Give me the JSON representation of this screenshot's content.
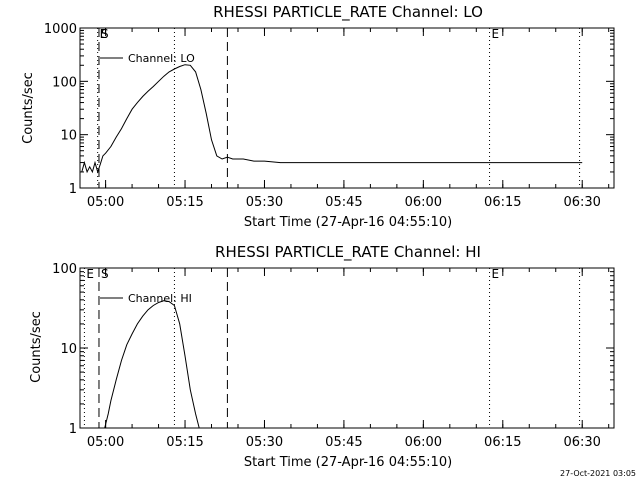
{
  "footer_timestamp": "27-Oct-2021 03:05",
  "chart_data": [
    {
      "type": "line",
      "title": "RHESSI PARTICLE_RATE Channel: LO",
      "xlabel": "Start Time (27-Apr-16 04:55:10)",
      "ylabel": "Counts/sec",
      "yscale": "log",
      "xlim": [
        "04:55:10",
        "06:36:00"
      ],
      "ylim": [
        1,
        1000
      ],
      "x_ticks": [
        "05:00",
        "05:15",
        "05:30",
        "05:45",
        "06:00",
        "06:15",
        "06:30"
      ],
      "y_ticks": [
        "1",
        "10",
        "100",
        "1000"
      ],
      "legend": {
        "position": "top-left",
        "entries": [
          "Channel: LO"
        ]
      },
      "markers": [
        {
          "time": "04:58:30",
          "label": "E",
          "style": "dotted"
        },
        {
          "time": "04:58:45",
          "label": "S",
          "style": "dashed"
        },
        {
          "time": "05:13:00",
          "label": "",
          "style": "dotted"
        },
        {
          "time": "05:23:00",
          "label": "",
          "style": "dashed"
        },
        {
          "time": "06:12:30",
          "label": "E",
          "style": "dotted"
        },
        {
          "time": "06:29:30",
          "label": "",
          "style": "dotted"
        }
      ],
      "series": [
        {
          "name": "Channel: LO",
          "points": [
            [
              "04:55:30",
              2
            ],
            [
              "04:56:00",
              3
            ],
            [
              "04:56:30",
              2
            ],
            [
              "04:57:00",
              2.5
            ],
            [
              "04:57:30",
              2
            ],
            [
              "04:58:00",
              3
            ],
            [
              "04:58:30",
              2
            ],
            [
              "04:59:00",
              2.8
            ],
            [
              "04:59:30",
              4
            ],
            [
              "05:00:00",
              4.5
            ],
            [
              "05:01:00",
              6
            ],
            [
              "05:02:00",
              9
            ],
            [
              "05:03:00",
              13
            ],
            [
              "05:04:00",
              20
            ],
            [
              "05:05:00",
              30
            ],
            [
              "05:06:00",
              40
            ],
            [
              "05:07:00",
              52
            ],
            [
              "05:08:00",
              65
            ],
            [
              "05:09:00",
              80
            ],
            [
              "05:10:00",
              100
            ],
            [
              "05:11:00",
              125
            ],
            [
              "05:12:00",
              150
            ],
            [
              "05:13:00",
              170
            ],
            [
              "05:14:00",
              190
            ],
            [
              "05:15:00",
              205
            ],
            [
              "05:16:00",
              200
            ],
            [
              "05:17:00",
              150
            ],
            [
              "05:18:00",
              70
            ],
            [
              "05:19:00",
              25
            ],
            [
              "05:20:00",
              8
            ],
            [
              "05:21:00",
              4
            ],
            [
              "05:22:00",
              3.5
            ],
            [
              "05:23:00",
              3.8
            ],
            [
              "05:24:00",
              3.5
            ],
            [
              "05:26:00",
              3.5
            ],
            [
              "05:28:00",
              3.2
            ],
            [
              "05:30:00",
              3.2
            ],
            [
              "05:33:00",
              3
            ],
            [
              "05:36:00",
              3
            ],
            [
              "05:40:00",
              3
            ],
            [
              "05:45:00",
              3
            ],
            [
              "05:50:00",
              3
            ],
            [
              "05:55:00",
              3
            ],
            [
              "06:00:00",
              3
            ],
            [
              "06:05:00",
              3
            ],
            [
              "06:10:00",
              3
            ],
            [
              "06:15:00",
              3
            ],
            [
              "06:20:00",
              3
            ],
            [
              "06:25:00",
              3
            ],
            [
              "06:30:00",
              3
            ]
          ]
        }
      ]
    },
    {
      "type": "line",
      "title": "RHESSI PARTICLE_RATE Channel: HI",
      "xlabel": "Start Time (27-Apr-16 04:55:10)",
      "ylabel": "Counts/sec",
      "yscale": "log",
      "xlim": [
        "04:55:10",
        "06:36:00"
      ],
      "ylim": [
        1,
        100
      ],
      "x_ticks": [
        "05:00",
        "05:15",
        "05:30",
        "05:45",
        "06:00",
        "06:15",
        "06:30"
      ],
      "y_ticks": [
        "1",
        "10",
        "100"
      ],
      "legend": {
        "position": "top-left",
        "entries": [
          "Channel: HI"
        ]
      },
      "markers": [
        {
          "time": "04:56:00",
          "label": "E",
          "style": "dotted"
        },
        {
          "time": "04:58:45",
          "label": "S",
          "style": "dashed"
        },
        {
          "time": "05:13:00",
          "label": "",
          "style": "dotted"
        },
        {
          "time": "05:23:00",
          "label": "",
          "style": "dashed"
        },
        {
          "time": "06:12:30",
          "label": "E",
          "style": "dotted"
        },
        {
          "time": "06:29:30",
          "label": "",
          "style": "dotted"
        }
      ],
      "series": [
        {
          "name": "Channel: HI",
          "points": [
            [
              "04:59:50",
              1
            ],
            [
              "05:00:30",
              1.5
            ],
            [
              "05:01:00",
              2.2
            ],
            [
              "05:02:00",
              4
            ],
            [
              "05:03:00",
              7
            ],
            [
              "05:04:00",
              11
            ],
            [
              "05:05:00",
              15
            ],
            [
              "05:06:00",
              20
            ],
            [
              "05:07:00",
              25
            ],
            [
              "05:08:00",
              30
            ],
            [
              "05:09:00",
              34
            ],
            [
              "05:10:00",
              37
            ],
            [
              "05:11:00",
              39
            ],
            [
              "05:12:00",
              38
            ],
            [
              "05:13:00",
              34
            ],
            [
              "05:14:00",
              20
            ],
            [
              "05:15:00",
              8
            ],
            [
              "05:16:00",
              3
            ],
            [
              "05:17:00",
              1.5
            ],
            [
              "05:17:40",
              1
            ]
          ]
        }
      ]
    }
  ]
}
